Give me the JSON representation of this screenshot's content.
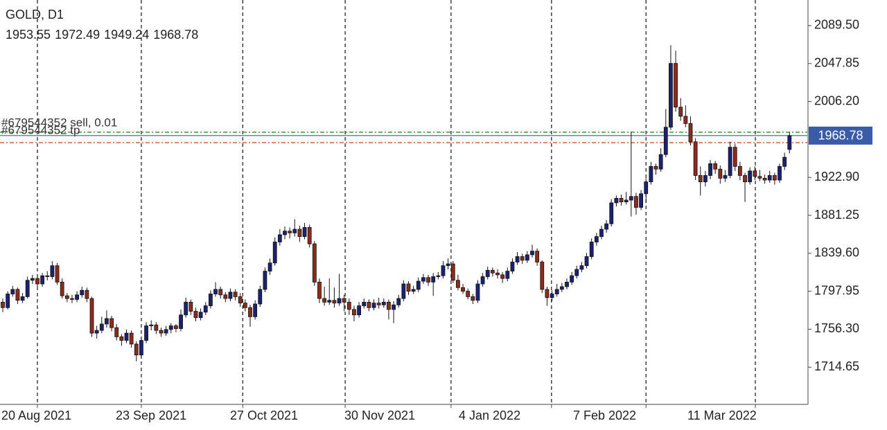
{
  "chart_data": {
    "type": "candlestick",
    "title": "GOLD, D1",
    "candles": [
      [
        1786,
        1790,
        1775,
        1780
      ],
      [
        1780,
        1798,
        1778,
        1795
      ],
      [
        1795,
        1804,
        1792,
        1800
      ],
      [
        1800,
        1802,
        1784,
        1788
      ],
      [
        1788,
        1796,
        1785,
        1792
      ],
      [
        1792,
        1814,
        1790,
        1810
      ],
      [
        1810,
        1816,
        1806,
        1812
      ],
      [
        1812,
        1815,
        1802,
        1806
      ],
      [
        1806,
        1818,
        1803,
        1815
      ],
      [
        1815,
        1820,
        1810,
        1814
      ],
      [
        1814,
        1831,
        1811,
        1826
      ],
      [
        1826,
        1829,
        1805,
        1808
      ],
      [
        1808,
        1812,
        1790,
        1793
      ],
      [
        1793,
        1796,
        1786,
        1790
      ],
      [
        1790,
        1794,
        1785,
        1789
      ],
      [
        1789,
        1798,
        1786,
        1794
      ],
      [
        1794,
        1803,
        1791,
        1799
      ],
      [
        1799,
        1802,
        1786,
        1790
      ],
      [
        1790,
        1792,
        1748,
        1752
      ],
      [
        1752,
        1760,
        1746,
        1755
      ],
      [
        1755,
        1770,
        1752,
        1762
      ],
      [
        1762,
        1777,
        1758,
        1768
      ],
      [
        1768,
        1771,
        1754,
        1758
      ],
      [
        1758,
        1762,
        1744,
        1748
      ],
      [
        1748,
        1751,
        1738,
        1744
      ],
      [
        1744,
        1756,
        1741,
        1752
      ],
      [
        1752,
        1755,
        1736,
        1740
      ],
      [
        1740,
        1743,
        1721,
        1728
      ],
      [
        1728,
        1748,
        1724,
        1744
      ],
      [
        1744,
        1764,
        1741,
        1760
      ],
      [
        1760,
        1766,
        1755,
        1761
      ],
      [
        1761,
        1764,
        1751,
        1755
      ],
      [
        1755,
        1758,
        1748,
        1752
      ],
      [
        1752,
        1760,
        1749,
        1756
      ],
      [
        1756,
        1763,
        1752,
        1760
      ],
      [
        1760,
        1762,
        1753,
        1757
      ],
      [
        1757,
        1778,
        1754,
        1772
      ],
      [
        1772,
        1791,
        1769,
        1786
      ],
      [
        1786,
        1789,
        1772,
        1776
      ],
      [
        1776,
        1780,
        1765,
        1769
      ],
      [
        1769,
        1779,
        1766,
        1775
      ],
      [
        1775,
        1786,
        1772,
        1782
      ],
      [
        1782,
        1799,
        1779,
        1795
      ],
      [
        1795,
        1808,
        1792,
        1800
      ],
      [
        1800,
        1803,
        1790,
        1794
      ],
      [
        1794,
        1797,
        1786,
        1790
      ],
      [
        1790,
        1801,
        1787,
        1797
      ],
      [
        1797,
        1800,
        1788,
        1792
      ],
      [
        1792,
        1796,
        1781,
        1785
      ],
      [
        1785,
        1789,
        1776,
        1780
      ],
      [
        1780,
        1783,
        1759,
        1770
      ],
      [
        1770,
        1788,
        1767,
        1784
      ],
      [
        1784,
        1804,
        1781,
        1800
      ],
      [
        1800,
        1824,
        1797,
        1820
      ],
      [
        1820,
        1834,
        1816,
        1829
      ],
      [
        1829,
        1857,
        1826,
        1852
      ],
      [
        1852,
        1866,
        1848,
        1860
      ],
      [
        1860,
        1869,
        1855,
        1864
      ],
      [
        1864,
        1868,
        1856,
        1862
      ],
      [
        1862,
        1877,
        1858,
        1866
      ],
      [
        1866,
        1870,
        1852,
        1858
      ],
      [
        1858,
        1873,
        1855,
        1868
      ],
      [
        1868,
        1871,
        1846,
        1850
      ],
      [
        1850,
        1853,
        1804,
        1808
      ],
      [
        1808,
        1812,
        1785,
        1790
      ],
      [
        1790,
        1803,
        1782,
        1786
      ],
      [
        1786,
        1812,
        1783,
        1788
      ],
      [
        1788,
        1802,
        1780,
        1785
      ],
      [
        1785,
        1817,
        1782,
        1790
      ],
      [
        1790,
        1794,
        1776,
        1786
      ],
      [
        1786,
        1790,
        1772,
        1778
      ],
      [
        1778,
        1782,
        1765,
        1772
      ],
      [
        1772,
        1786,
        1769,
        1782
      ],
      [
        1782,
        1790,
        1779,
        1786
      ],
      [
        1786,
        1789,
        1776,
        1780
      ],
      [
        1780,
        1789,
        1777,
        1785
      ],
      [
        1785,
        1791,
        1779,
        1783
      ],
      [
        1783,
        1790,
        1780,
        1786
      ],
      [
        1786,
        1789,
        1767,
        1778
      ],
      [
        1778,
        1787,
        1763,
        1783
      ],
      [
        1783,
        1794,
        1780,
        1790
      ],
      [
        1790,
        1810,
        1787,
        1806
      ],
      [
        1806,
        1809,
        1794,
        1798
      ],
      [
        1798,
        1804,
        1795,
        1800
      ],
      [
        1800,
        1813,
        1797,
        1809
      ],
      [
        1809,
        1817,
        1806,
        1813
      ],
      [
        1813,
        1816,
        1804,
        1808
      ],
      [
        1808,
        1818,
        1793,
        1814
      ],
      [
        1814,
        1819,
        1811,
        1815
      ],
      [
        1815,
        1831,
        1812,
        1826
      ],
      [
        1826,
        1834,
        1822,
        1828
      ],
      [
        1828,
        1831,
        1807,
        1810
      ],
      [
        1810,
        1816,
        1799,
        1802
      ],
      [
        1802,
        1806,
        1795,
        1798
      ],
      [
        1798,
        1801,
        1789,
        1792
      ],
      [
        1792,
        1795,
        1784,
        1788
      ],
      [
        1788,
        1810,
        1785,
        1806
      ],
      [
        1806,
        1818,
        1803,
        1814
      ],
      [
        1814,
        1825,
        1811,
        1821
      ],
      [
        1821,
        1824,
        1814,
        1818
      ],
      [
        1818,
        1822,
        1812,
        1816
      ],
      [
        1816,
        1819,
        1807,
        1812
      ],
      [
        1812,
        1824,
        1809,
        1820
      ],
      [
        1820,
        1834,
        1817,
        1830
      ],
      [
        1830,
        1841,
        1827,
        1836
      ],
      [
        1836,
        1839,
        1828,
        1832
      ],
      [
        1832,
        1842,
        1829,
        1838
      ],
      [
        1838,
        1849,
        1835,
        1842
      ],
      [
        1842,
        1845,
        1826,
        1830
      ],
      [
        1830,
        1832,
        1796,
        1800
      ],
      [
        1800,
        1803,
        1782,
        1791
      ],
      [
        1791,
        1799,
        1787,
        1795
      ],
      [
        1795,
        1806,
        1792,
        1800
      ],
      [
        1800,
        1807,
        1797,
        1803
      ],
      [
        1803,
        1812,
        1800,
        1808
      ],
      [
        1808,
        1819,
        1805,
        1815
      ],
      [
        1815,
        1826,
        1812,
        1822
      ],
      [
        1822,
        1830,
        1819,
        1826
      ],
      [
        1826,
        1840,
        1823,
        1836
      ],
      [
        1836,
        1856,
        1833,
        1852
      ],
      [
        1852,
        1862,
        1848,
        1858
      ],
      [
        1858,
        1870,
        1855,
        1866
      ],
      [
        1866,
        1876,
        1862,
        1872
      ],
      [
        1872,
        1899,
        1869,
        1895
      ],
      [
        1895,
        1903,
        1891,
        1900
      ],
      [
        1900,
        1904,
        1892,
        1896
      ],
      [
        1896,
        1907,
        1893,
        1898
      ],
      [
        1898,
        1973,
        1880,
        1902
      ],
      [
        1902,
        1906,
        1882,
        1890
      ],
      [
        1890,
        1909,
        1887,
        1905
      ],
      [
        1905,
        1922,
        1895,
        1918
      ],
      [
        1918,
        1940,
        1915,
        1935
      ],
      [
        1935,
        1938,
        1926,
        1932
      ],
      [
        1932,
        1955,
        1929,
        1948
      ],
      [
        1948,
        1998,
        1945,
        1978
      ],
      [
        1978,
        2068,
        1975,
        2048
      ],
      [
        2048,
        2062,
        1995,
        2000
      ],
      [
        2000,
        2010,
        1985,
        1990
      ],
      [
        1990,
        2002,
        1978,
        1982
      ],
      [
        1982,
        1990,
        1958,
        1962
      ],
      [
        1962,
        1966,
        1920,
        1925
      ],
      [
        1925,
        1935,
        1903,
        1918
      ],
      [
        1918,
        1930,
        1913,
        1925
      ],
      [
        1925,
        1942,
        1921,
        1938
      ],
      [
        1938,
        1941,
        1927,
        1932
      ],
      [
        1932,
        1936,
        1916,
        1922
      ],
      [
        1922,
        1931,
        1918,
        1925
      ],
      [
        1925,
        1962,
        1922,
        1956
      ],
      [
        1956,
        1960,
        1930,
        1935
      ],
      [
        1935,
        1940,
        1920,
        1925
      ],
      [
        1925,
        1928,
        1896,
        1918
      ],
      [
        1918,
        1934,
        1915,
        1930
      ],
      [
        1930,
        1935,
        1920,
        1924
      ],
      [
        1924,
        1931,
        1919,
        1922
      ],
      [
        1922,
        1926,
        1916,
        1920
      ],
      [
        1920,
        1930,
        1917,
        1925
      ],
      [
        1925,
        1928,
        1915,
        1920
      ],
      [
        1920,
        1938,
        1917,
        1935
      ],
      [
        1935,
        1950,
        1931,
        1945
      ],
      [
        1953.55,
        1972.49,
        1949.24,
        1968.78
      ]
    ],
    "up_color": "#1c2270",
    "down_color": "#8e2c1c",
    "xlim": [
      -0.56,
      162.6
    ],
    "xticks": [
      {
        "value": 7,
        "label": "20 Aug 2021"
      },
      {
        "value": 28,
        "label": "23 Sep 2021"
      },
      {
        "value": 48.5,
        "label": "27 Oct 2021"
      },
      {
        "value": 69.2,
        "label": "30 Nov 2021"
      },
      {
        "value": 90.6,
        "label": "4 Jan 2022"
      },
      {
        "value": 110.9,
        "label": "7 Feb 2022"
      },
      {
        "value": 130,
        "label": ""
      },
      {
        "value": 152.1,
        "label": "11 Mar 2022"
      }
    ],
    "ylim": [
      1673.8,
      2117.6
    ],
    "yticks": [
      {
        "value": 2089.5,
        "label": "2089.50"
      },
      {
        "value": 2047.85,
        "label": "2047.85"
      },
      {
        "value": 2006.2,
        "label": "2006.20"
      },
      {
        "value": 1922.9,
        "label": "1922.90"
      },
      {
        "value": 1881.25,
        "label": "1881.25"
      },
      {
        "value": 1839.6,
        "label": "1839.60"
      },
      {
        "value": 1797.95,
        "label": "1797.95"
      },
      {
        "value": 1756.3,
        "label": "1756.30"
      },
      {
        "value": 1714.65,
        "label": "1714.65"
      }
    ],
    "bid_color": "#3a5ba8",
    "orders": [
      {
        "label": "#679544352 sell, 0.01",
        "price": 1961.1,
        "color": "#d0552a"
      },
      {
        "label": "#679544352 tp",
        "price": 1972.5,
        "color": "#2e8b2e"
      }
    ]
  }
}
